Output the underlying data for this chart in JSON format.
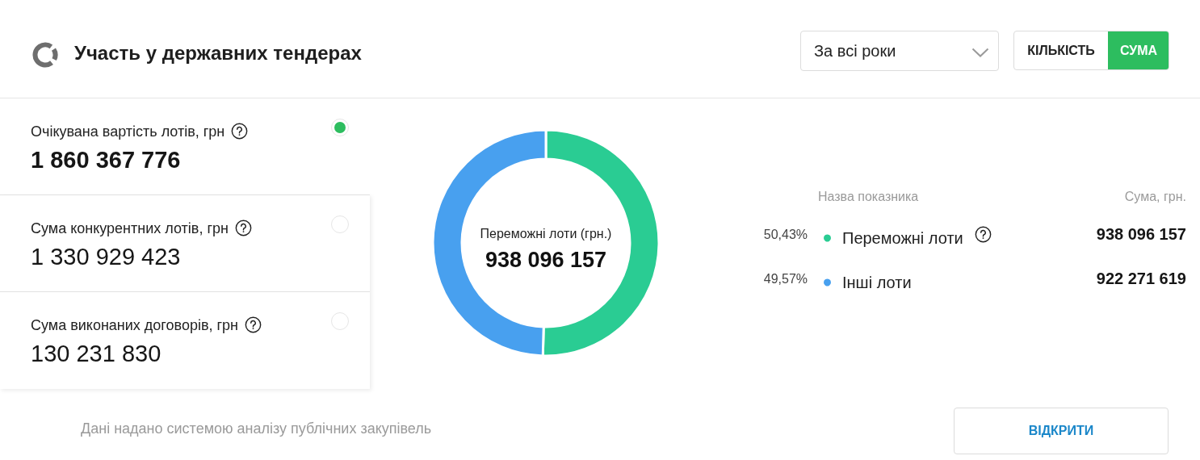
{
  "chart_data": [
    {
      "type": "other",
      "title": "Участь у державних тендерах",
      "annotations": [
        "За всі роки",
        "КІЛЬКІСТЬ",
        "СУМА",
        "Очікувана вартість лотів, грн",
        "1 860 367 776",
        "Сума конкурентних лотів, грн",
        "1 330 929 423",
        "Сума виконаних договорів, грн",
        "130 231 830",
        "Дані надано системою аналізу публічних закупівель",
        "ВІДКРИТИ"
      ]
    },
    {
      "type": "donut",
      "categories": [
        "Переможні лоти",
        "Інші лоти"
      ],
      "values": [
        938096157,
        922271619
      ],
      "colors": [
        "#2acc93",
        "#48a0ef"
      ],
      "data_labels": true,
      "legend": "right",
      "annotations": [
        "Переможні лоти (грн.)",
        "938 096 157",
        "Назва показника",
        "Сума, грн.",
        "50,43%",
        "49,57%"
      ]
    }
  ]
}
